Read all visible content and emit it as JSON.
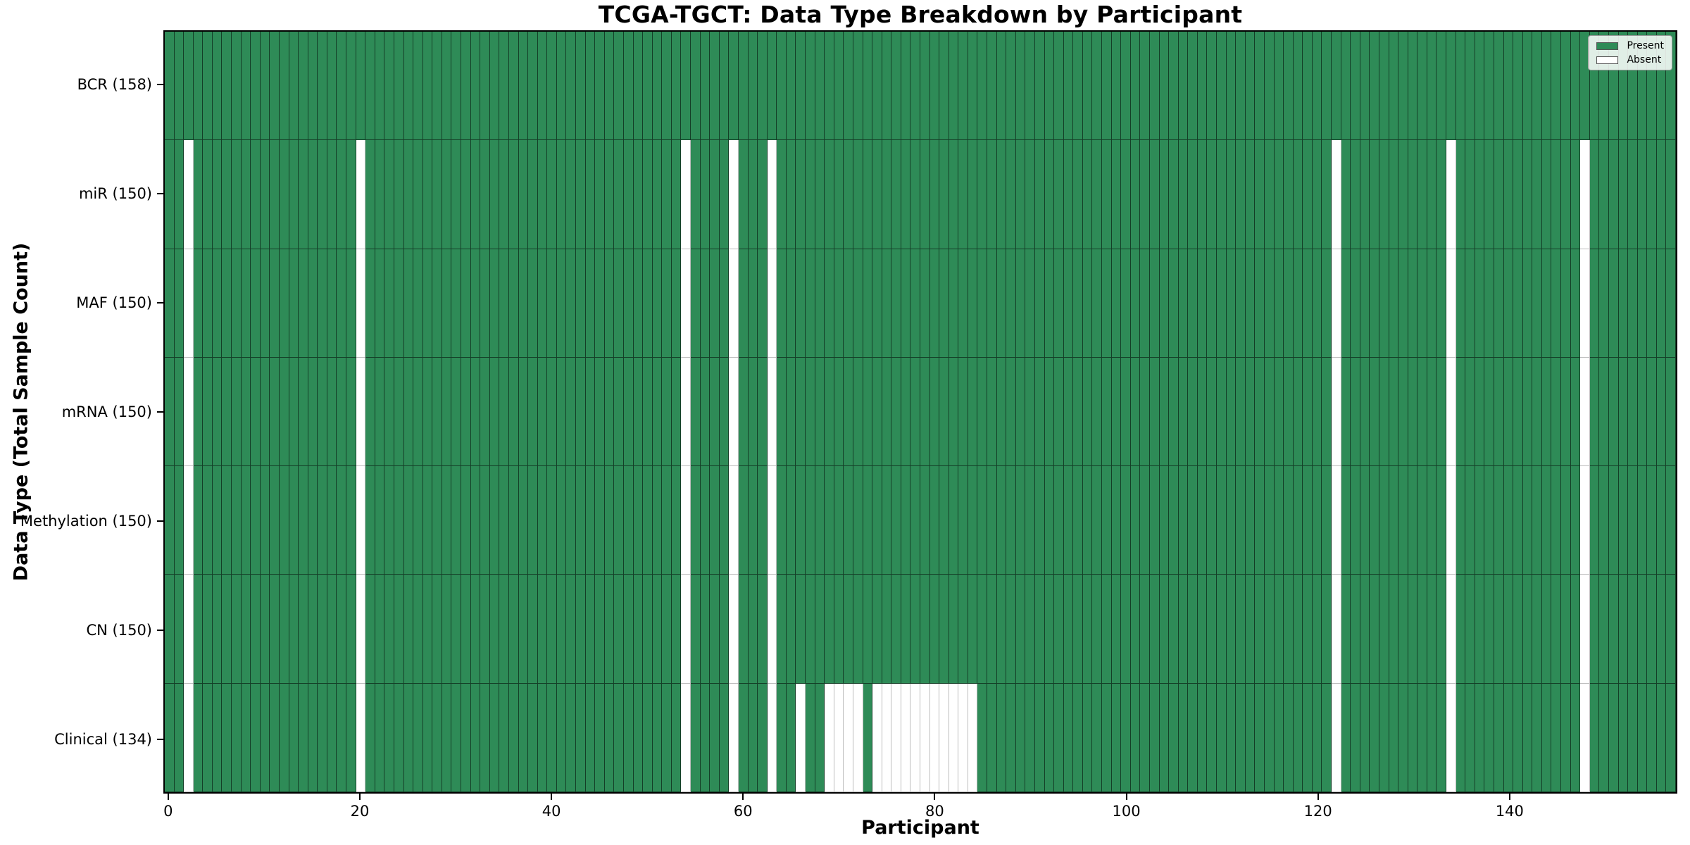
{
  "chart_data": {
    "type": "heatmap",
    "title": "TCGA-TGCT: Data Type Breakdown by Participant",
    "xlabel": "Participant",
    "ylabel": "Data Type (Total Sample Count)",
    "n_participants": 158,
    "x_ticks": [
      0,
      20,
      40,
      60,
      80,
      100,
      120,
      140
    ],
    "legend_position": "upper right",
    "grid": false,
    "rows": [
      {
        "name": "BCR",
        "label": "BCR (158)",
        "total": 158,
        "absent_participants": []
      },
      {
        "name": "miR",
        "label": "miR (150)",
        "total": 150,
        "absent_participants": [
          2,
          20,
          54,
          59,
          63,
          122,
          134,
          148
        ]
      },
      {
        "name": "MAF",
        "label": "MAF (150)",
        "total": 150,
        "absent_participants": [
          2,
          20,
          54,
          59,
          63,
          122,
          134,
          148
        ]
      },
      {
        "name": "mRNA",
        "label": "mRNA (150)",
        "total": 150,
        "absent_participants": [
          2,
          20,
          54,
          59,
          63,
          122,
          134,
          148
        ]
      },
      {
        "name": "Methylation",
        "label": "Methylation (150)",
        "total": 150,
        "absent_participants": [
          2,
          20,
          54,
          59,
          63,
          122,
          134,
          148
        ]
      },
      {
        "name": "CN",
        "label": "CN (150)",
        "total": 150,
        "absent_participants": [
          2,
          20,
          54,
          59,
          63,
          122,
          134,
          148
        ]
      },
      {
        "name": "Clinical",
        "label": "Clinical (134)",
        "total": 134,
        "absent_participants": [
          2,
          20,
          54,
          59,
          63,
          66,
          69,
          70,
          71,
          72,
          74,
          75,
          76,
          77,
          78,
          79,
          80,
          81,
          82,
          83,
          84,
          122,
          134,
          148
        ]
      }
    ],
    "legend": [
      {
        "label": "Present",
        "color": "#2e8b57"
      },
      {
        "label": "Absent",
        "color": "#ffffff"
      }
    ],
    "colors": {
      "present": "#2e8b57",
      "absent": "#ffffff",
      "edge_dark": "rgba(0,0,0,0.55)",
      "edge_light": "#bdbdbd",
      "spine": "#000000"
    }
  }
}
